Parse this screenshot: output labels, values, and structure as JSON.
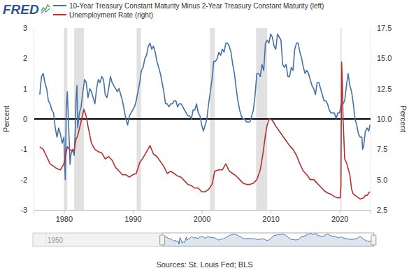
{
  "chart_data": {
    "type": "line",
    "brand": "FRED",
    "source": "Sources: St. Louis Fed; BLS",
    "ylabel": "Percent",
    "y2label": "Percent",
    "xlim": [
      1975.6,
      2024.5
    ],
    "xticks": [
      1980,
      1990,
      2000,
      2010,
      2020
    ],
    "ylim": [
      -3,
      3
    ],
    "yticks": [
      -3,
      -2,
      -1,
      0,
      1,
      2,
      3
    ],
    "y2lim": [
      2.5,
      17.5
    ],
    "y2ticks": [
      2.5,
      {
        "value": 5,
        "label": "5.0"
      },
      7.5,
      {
        "value": 10,
        "label": "10.0"
      },
      12.5,
      {
        "value": 15,
        "label": "15.0"
      },
      17.5
    ],
    "hlines": [
      0
    ],
    "recessions": [
      {
        "start": 1980.0,
        "end": 1980.5
      },
      {
        "start": 1981.5,
        "end": 1982.9
      },
      {
        "start": 1990.55,
        "end": 1991.2
      },
      {
        "start": 2001.2,
        "end": 2001.9
      },
      {
        "start": 2007.9,
        "end": 2009.5
      },
      {
        "start": 2020.1,
        "end": 2020.3
      }
    ],
    "navigator": {
      "xlim": [
        1947,
        2024.5
      ],
      "xticks": [
        1950
      ],
      "range": [
        1976.4,
        2024.4
      ]
    },
    "series": [
      {
        "name": "10-Year Treasury Constant Maturity Minus 2-Year Treasury Constant Maturity (left)",
        "color": "#4572a7",
        "axis": "y",
        "type": "line",
        "x": [
          1976.5,
          1976.75,
          1977,
          1977.25,
          1977.5,
          1977.75,
          1978,
          1978.25,
          1978.5,
          1978.75,
          1979,
          1979.25,
          1979.5,
          1979.75,
          1980,
          1980.2,
          1980.35,
          1980.5,
          1980.75,
          1980.9,
          1981,
          1981.25,
          1981.5,
          1981.65,
          1981.75,
          1981.9,
          1982,
          1982.25,
          1982.5,
          1982.75,
          1983,
          1983.25,
          1983.5,
          1983.75,
          1984,
          1984.25,
          1984.5,
          1984.75,
          1985,
          1985.25,
          1985.5,
          1985.75,
          1986,
          1986.25,
          1986.5,
          1986.75,
          1987,
          1987.25,
          1987.5,
          1987.75,
          1988,
          1988.25,
          1988.5,
          1988.75,
          1989,
          1989.25,
          1989.5,
          1989.75,
          1990,
          1990.25,
          1990.5,
          1990.75,
          1991,
          1991.25,
          1991.5,
          1991.75,
          1992,
          1992.25,
          1992.5,
          1992.75,
          1993,
          1993.25,
          1993.5,
          1993.75,
          1994,
          1994.25,
          1994.5,
          1994.75,
          1995,
          1995.25,
          1995.5,
          1995.75,
          1996,
          1996.25,
          1996.5,
          1996.75,
          1997,
          1997.25,
          1997.5,
          1997.75,
          1998,
          1998.25,
          1998.5,
          1998.75,
          1999,
          1999.25,
          1999.5,
          1999.75,
          2000,
          2000.25,
          2000.5,
          2000.75,
          2001,
          2001.25,
          2001.5,
          2001.75,
          2002,
          2002.25,
          2002.5,
          2002.75,
          2003,
          2003.25,
          2003.5,
          2003.75,
          2004,
          2004.25,
          2004.5,
          2004.75,
          2005,
          2005.25,
          2005.5,
          2005.75,
          2006,
          2006.25,
          2006.5,
          2006.75,
          2007,
          2007.25,
          2007.5,
          2007.75,
          2008,
          2008.25,
          2008.5,
          2008.75,
          2009,
          2009.25,
          2009.5,
          2009.75,
          2010,
          2010.25,
          2010.5,
          2010.75,
          2011,
          2011.25,
          2011.5,
          2011.75,
          2012,
          2012.25,
          2012.5,
          2012.75,
          2013,
          2013.25,
          2013.5,
          2013.75,
          2014,
          2014.25,
          2014.5,
          2014.75,
          2015,
          2015.25,
          2015.5,
          2015.75,
          2016,
          2016.25,
          2016.5,
          2016.75,
          2017,
          2017.25,
          2017.5,
          2017.75,
          2018,
          2018.25,
          2018.5,
          2018.75,
          2019,
          2019.25,
          2019.5,
          2019.75,
          2020,
          2020.25,
          2020.5,
          2020.75,
          2021,
          2021.25,
          2021.5,
          2021.75,
          2022,
          2022.25,
          2022.5,
          2022.75,
          2023,
          2023.25,
          2023.35,
          2023.5,
          2023.75,
          2024,
          2024.25,
          2024.4
        ],
        "values": [
          0.8,
          1.4,
          1.5,
          1.2,
          1.0,
          0.6,
          0.5,
          0.3,
          0.2,
          -0.3,
          -0.6,
          -0.3,
          -0.5,
          -0.8,
          -0.6,
          -2.0,
          0.4,
          0.9,
          -0.6,
          -1.5,
          -1.2,
          -1.0,
          -1.2,
          -0.4,
          0.6,
          1.1,
          -0.3,
          0.2,
          0.4,
          0.9,
          1.3,
          1.2,
          0.7,
          1.0,
          0.9,
          0.7,
          0.5,
          1.0,
          1.3,
          1.2,
          1.4,
          1.3,
          0.8,
          0.7,
          1.0,
          1.4,
          1.2,
          1.1,
          1.0,
          0.9,
          1.0,
          0.8,
          0.6,
          0.3,
          0.0,
          -0.2,
          0.1,
          0.2,
          0.3,
          0.4,
          0.6,
          0.9,
          1.2,
          1.6,
          1.7,
          2.0,
          2.1,
          2.4,
          2.5,
          2.3,
          2.4,
          2.2,
          1.9,
          1.7,
          1.5,
          1.2,
          0.9,
          0.5,
          0.5,
          0.4,
          0.5,
          0.5,
          0.6,
          0.6,
          0.4,
          0.5,
          0.5,
          0.4,
          0.3,
          0.2,
          0.1,
          0.1,
          0.0,
          0.3,
          0.3,
          0.5,
          0.2,
          0.1,
          -0.2,
          -0.4,
          -0.2,
          0.0,
          0.5,
          0.9,
          1.3,
          1.9,
          1.9,
          2.0,
          2.2,
          2.1,
          2.3,
          2.2,
          2.5,
          2.5,
          2.4,
          2.2,
          1.8,
          1.5,
          1.0,
          0.6,
          0.3,
          0.1,
          0.0,
          0.0,
          -0.1,
          -0.1,
          -0.1,
          0.1,
          0.3,
          0.8,
          1.5,
          1.5,
          1.4,
          1.8,
          1.6,
          2.5,
          2.6,
          2.5,
          2.8,
          2.7,
          2.4,
          2.3,
          2.8,
          2.7,
          2.6,
          1.8,
          1.7,
          1.8,
          1.4,
          1.4,
          1.7,
          1.6,
          2.3,
          2.5,
          2.5,
          2.2,
          2.0,
          1.7,
          1.5,
          1.6,
          1.5,
          1.3,
          1.1,
          1.0,
          0.8,
          1.2,
          1.2,
          1.0,
          0.8,
          0.6,
          0.6,
          0.5,
          0.3,
          0.2,
          0.2,
          0.2,
          0.0,
          0.2,
          0.2,
          0.5,
          0.5,
          0.6,
          1.1,
          1.5,
          1.1,
          0.9,
          0.5,
          0.0,
          -0.2,
          -0.5,
          -0.6,
          -0.6,
          -1.0,
          -0.9,
          -0.4,
          -0.3,
          -0.4,
          -0.2
        ]
      },
      {
        "name": "Unemployment Rate (right)",
        "color": "#b5302f",
        "axis": "y2",
        "type": "line",
        "x": [
          1976.5,
          1977,
          1977.5,
          1978,
          1978.5,
          1979,
          1979.5,
          1980,
          1980.5,
          1981,
          1981.5,
          1981.75,
          1982,
          1982.5,
          1982.9,
          1983.25,
          1983.5,
          1984,
          1984.5,
          1985,
          1985.5,
          1986,
          1986.5,
          1987,
          1987.5,
          1988,
          1988.5,
          1989,
          1989.5,
          1990,
          1990.5,
          1991,
          1991.5,
          1992,
          1992.5,
          1993,
          1993.5,
          1994,
          1994.5,
          1995,
          1995.5,
          1996,
          1996.5,
          1997,
          1997.5,
          1998,
          1998.5,
          1999,
          1999.5,
          2000,
          2000.5,
          2001,
          2001.5,
          2001.9,
          2002.5,
          2003,
          2003.5,
          2004,
          2004.5,
          2005,
          2005.5,
          2006,
          2006.5,
          2007,
          2007.5,
          2008,
          2008.5,
          2008.9,
          2009.25,
          2009.5,
          2009.8,
          2010.25,
          2010.75,
          2011.25,
          2011.75,
          2012.25,
          2012.75,
          2013.25,
          2013.75,
          2014.25,
          2014.75,
          2015.25,
          2015.75,
          2016.25,
          2016.75,
          2017.25,
          2017.75,
          2018.25,
          2018.75,
          2019.25,
          2019.75,
          2020.1,
          2020.2,
          2020.3,
          2020.4,
          2020.5,
          2020.75,
          2021,
          2021.5,
          2021.75,
          2022,
          2022.5,
          2022.75,
          2023,
          2023.5,
          2023.75,
          2024,
          2024.25,
          2024.4
        ],
        "values": [
          7.7,
          7.5,
          6.9,
          6.3,
          6.1,
          5.9,
          5.8,
          6.3,
          7.7,
          7.4,
          7.4,
          8.3,
          8.6,
          9.8,
          10.8,
          10.2,
          9.4,
          8.0,
          7.5,
          7.3,
          7.2,
          6.7,
          6.9,
          6.6,
          6.0,
          5.7,
          5.4,
          5.4,
          5.2,
          5.4,
          5.5,
          6.4,
          6.8,
          7.3,
          7.8,
          7.1,
          6.9,
          6.5,
          6.1,
          5.5,
          5.7,
          5.5,
          5.3,
          5.2,
          4.9,
          4.6,
          4.5,
          4.3,
          4.3,
          4.0,
          4.0,
          4.2,
          4.6,
          5.7,
          5.8,
          5.8,
          6.3,
          5.7,
          5.5,
          5.3,
          5.0,
          4.7,
          4.6,
          4.6,
          4.7,
          5.0,
          5.8,
          7.2,
          8.7,
          9.5,
          10.0,
          9.9,
          9.4,
          9.0,
          8.6,
          8.2,
          7.8,
          7.5,
          7.0,
          6.3,
          5.7,
          5.4,
          5.0,
          5.0,
          4.7,
          4.4,
          4.1,
          3.9,
          3.8,
          3.6,
          3.5,
          3.5,
          4.4,
          14.7,
          13.2,
          10.2,
          6.7,
          6.4,
          5.4,
          4.2,
          3.8,
          3.6,
          3.5,
          3.4,
          3.5,
          3.7,
          3.7,
          3.9,
          4.0
        ]
      }
    ]
  }
}
